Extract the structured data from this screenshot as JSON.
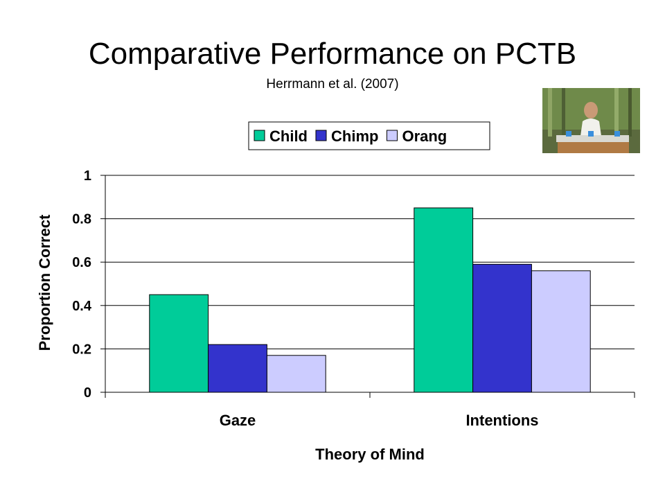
{
  "slide": {
    "title": "Comparative Performance on PCTB",
    "subtitle": "Herrmann et al. (2007)"
  },
  "chart_data": {
    "type": "bar",
    "categories": [
      "Gaze",
      "Intentions"
    ],
    "series": [
      {
        "name": "Child",
        "values": [
          0.45,
          0.85
        ],
        "color": "#00cc99"
      },
      {
        "name": "Chimp",
        "values": [
          0.22,
          0.59
        ],
        "color": "#3333cc"
      },
      {
        "name": "Orang",
        "values": [
          0.17,
          0.56
        ],
        "color": "#ccccff"
      }
    ],
    "xlabel": "Theory of Mind",
    "ylabel": "Proportion Correct",
    "ylim": [
      0,
      1
    ],
    "yticks": [
      0,
      0.2,
      0.4,
      0.6,
      0.8,
      1
    ],
    "ytick_labels": [
      "0",
      "0.2",
      "0.4",
      "0.6",
      "0.8",
      "1"
    ],
    "grid": true,
    "legend_position": "top"
  }
}
